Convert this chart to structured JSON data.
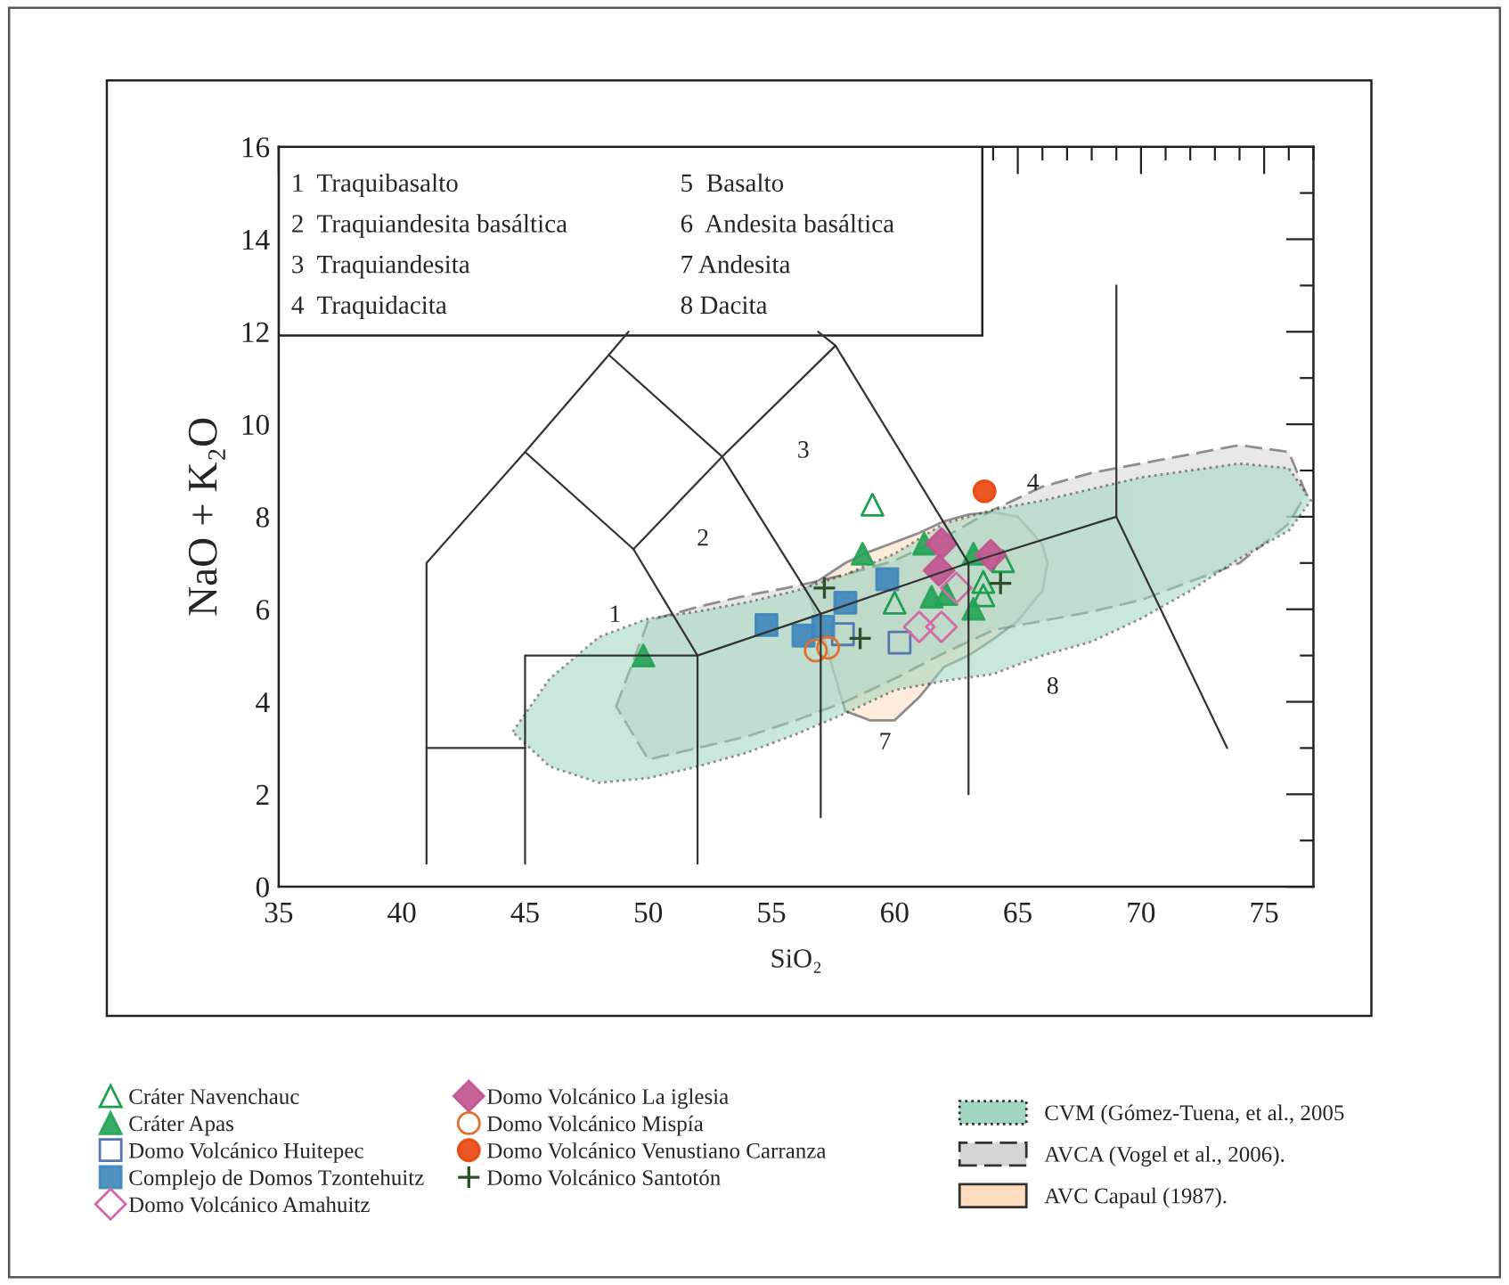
{
  "chart_data": {
    "type": "scatter",
    "xlabel": "SiO₂",
    "ylabel": "NaO + K₂O",
    "xlim": [
      35,
      77
    ],
    "ylim": [
      0,
      16
    ],
    "xticks": [
      35,
      40,
      45,
      50,
      55,
      60,
      65,
      70,
      75
    ],
    "yticks": [
      0,
      2,
      4,
      6,
      8,
      10,
      12,
      14,
      16
    ],
    "grid": false,
    "legend": "bottom",
    "annotations": [
      "1  Traquibasalto",
      "2  Traquiandesita basáltica",
      "3  Traquiandesita",
      "4  Traquidacita",
      "5  Basalto",
      "6  Andesita basáltica",
      "7 Andesita",
      "8 Dacita",
      "1",
      "2",
      "3",
      "4",
      "7",
      "8"
    ],
    "series": [
      {
        "type": "line",
        "color": "#333333",
        "x": [
          41,
          41,
          45,
          48.4,
          49.2
        ],
        "values": [
          0.5,
          7,
          9.4,
          11.5,
          12
        ]
      },
      {
        "type": "line",
        "color": "#333333",
        "x": [
          45,
          49.4,
          52
        ],
        "values": [
          9.4,
          7.3,
          5
        ]
      },
      {
        "type": "line",
        "color": "#333333",
        "x": [
          49.4,
          53,
          57.6,
          56.9
        ],
        "values": [
          7.3,
          9.3,
          11.7,
          12
        ]
      },
      {
        "type": "line",
        "color": "#333333",
        "x": [
          48.4,
          53,
          57
        ],
        "values": [
          11.5,
          9.3,
          5.9
        ]
      },
      {
        "type": "line",
        "color": "#333333",
        "x": [
          57.6,
          63
        ],
        "values": [
          11.7,
          7
        ]
      },
      {
        "type": "line",
        "color": "#333333",
        "x": [
          41,
          45
        ],
        "values": [
          3,
          3
        ]
      },
      {
        "type": "line",
        "color": "#333333",
        "x": [
          45,
          45,
          52,
          57,
          63,
          69,
          69
        ],
        "values": [
          0.5,
          5,
          5,
          5.9,
          7,
          8,
          13
        ]
      },
      {
        "type": "line",
        "color": "#333333",
        "x": [
          52,
          52
        ],
        "values": [
          0.5,
          5
        ]
      },
      {
        "type": "line",
        "color": "#333333",
        "x": [
          57,
          57
        ],
        "values": [
          1.5,
          5.9
        ]
      },
      {
        "type": "line",
        "color": "#333333",
        "x": [
          63,
          63
        ],
        "values": [
          2,
          7
        ]
      },
      {
        "type": "line",
        "color": "#333333",
        "x": [
          69,
          73.5
        ],
        "values": [
          8,
          3
        ]
      },
      {
        "type": "area",
        "name": "CVM (Gómez-Tuena, et al., 2005",
        "color": "#9fd6bd",
        "line_style": "dotted",
        "x": [
          44.5,
          46,
          48,
          50,
          52,
          54,
          56,
          58,
          60,
          62,
          64,
          66,
          68,
          70,
          72,
          74,
          76,
          76.9,
          76,
          74,
          72,
          70,
          68,
          66,
          64,
          62,
          60,
          58,
          56,
          54,
          52,
          50,
          48,
          46
        ],
        "values": [
          3.35,
          4.5,
          5.4,
          5.8,
          5.95,
          6.15,
          6.4,
          6.75,
          7.2,
          7.85,
          8.15,
          8.35,
          8.6,
          8.85,
          9.0,
          9.15,
          9.05,
          8.35,
          7.7,
          7.1,
          6.4,
          5.8,
          5.3,
          5.0,
          4.6,
          4.45,
          4.25,
          3.75,
          3.3,
          2.9,
          2.6,
          2.35,
          2.25,
          2.6
        ]
      },
      {
        "type": "area",
        "name": "AVCA (Vogel et al., 2006).",
        "color": "#d6d6d6",
        "line_style": "dashed",
        "x": [
          48.7,
          50,
          52,
          54,
          56,
          58,
          60,
          62,
          64,
          66,
          68,
          70,
          72,
          74,
          76,
          76.7,
          76,
          74,
          72,
          70,
          68,
          66,
          64,
          62,
          60,
          58,
          56,
          54,
          52,
          50
        ],
        "values": [
          3.9,
          5.75,
          6.05,
          6.3,
          6.5,
          6.75,
          7.05,
          7.55,
          8.15,
          8.65,
          8.95,
          9.15,
          9.35,
          9.55,
          9.4,
          8.5,
          7.85,
          7.0,
          6.6,
          6.2,
          5.95,
          5.75,
          5.55,
          5.05,
          4.5,
          4.0,
          3.6,
          3.25,
          3.0,
          2.75
        ]
      },
      {
        "type": "area",
        "name": "AVC Capaul (1987).",
        "color": "#fddcc0",
        "line_style": "solid",
        "x": [
          56.4,
          57,
          58,
          59,
          60,
          61,
          62,
          63,
          64,
          65,
          66,
          66.2,
          66,
          65,
          64,
          63,
          62,
          61,
          60,
          59,
          58,
          57
        ],
        "values": [
          6.45,
          6.65,
          7.0,
          7.25,
          7.45,
          7.65,
          7.9,
          8.05,
          8.1,
          8.0,
          7.4,
          7.0,
          6.4,
          5.75,
          5.35,
          5.0,
          4.75,
          4.1,
          3.6,
          3.6,
          3.8,
          5.6
        ]
      },
      {
        "type": "scatter",
        "name": "Cráter Navenchauc",
        "color": "#1e9e50",
        "marker": "triangle-open",
        "x": [
          59.1,
          60.0,
          64.4,
          63.6,
          63.6
        ],
        "values": [
          8.26,
          6.14,
          7.04,
          6.59,
          6.3
        ]
      },
      {
        "type": "scatter",
        "name": "Cráter Apas",
        "color": "#22a356",
        "marker": "triangle",
        "x": [
          49.8,
          58.7,
          61.2,
          61.5,
          62.1,
          63.2,
          63.2
        ],
        "values": [
          5.0,
          7.2,
          7.42,
          6.27,
          6.33,
          7.2,
          6.01
        ]
      },
      {
        "type": "scatter",
        "name": "Domo Volcánico Huitepec",
        "color": "#5577b0",
        "marker": "square-open",
        "x": [
          60.2,
          57.9
        ],
        "values": [
          5.28,
          5.46
        ]
      },
      {
        "type": "scatter",
        "name": "Complejo de Domos Tzontehuitz",
        "color": "#3f86bd",
        "marker": "square",
        "x": [
          54.8,
          56.3,
          57.1,
          58.0,
          59.7
        ],
        "values": [
          5.66,
          5.43,
          5.62,
          6.14,
          6.65
        ]
      },
      {
        "type": "scatter",
        "name": "Domo Volcánico Amahuitz",
        "color": "#d36aa6",
        "marker": "diamond-open",
        "x": [
          61.0,
          61.9,
          62.5
        ],
        "values": [
          5.62,
          5.62,
          6.46
        ]
      },
      {
        "type": "scatter",
        "name": "Domo Volcánico La iglesia",
        "color": "#c2528f",
        "marker": "diamond",
        "x": [
          61.9,
          61.8,
          63.9
        ],
        "values": [
          7.42,
          6.84,
          7.17
        ]
      },
      {
        "type": "scatter",
        "name": "Domo Volcánico Mispía",
        "color": "#e0702a",
        "marker": "circle-open",
        "x": [
          56.8,
          57.3
        ],
        "values": [
          5.11,
          5.17
        ]
      },
      {
        "type": "scatter",
        "name": "Domo Volcánico Venustiano Carranza",
        "color": "#e8450c",
        "marker": "circle",
        "x": [
          63.65
        ],
        "values": [
          8.55
        ]
      },
      {
        "type": "scatter",
        "name": "Domo Volcánico Santotón",
        "color": "#2f4f2a",
        "marker": "cross",
        "x": [
          57.15,
          58.6,
          64.3
        ],
        "values": [
          6.46,
          5.37,
          6.56
        ]
      }
    ]
  }
}
